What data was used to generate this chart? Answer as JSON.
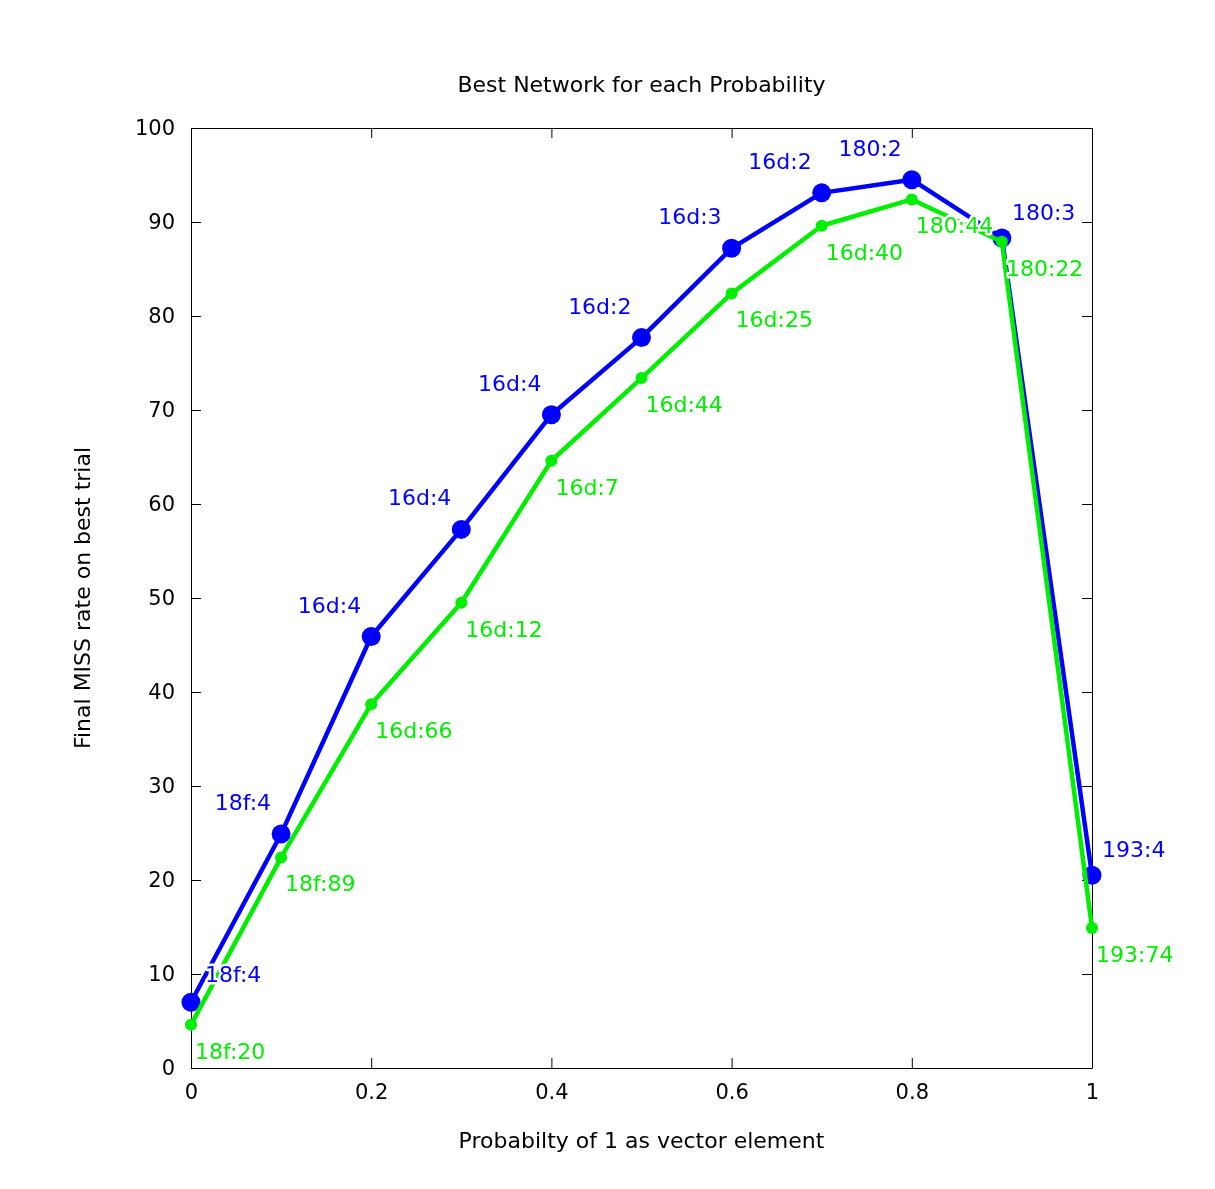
{
  "chart_data": {
    "type": "line",
    "title": "Best Network for each Probability",
    "xlabel": "Probabilty of 1 as  vector element",
    "ylabel": "Final MISS rate on best trial",
    "x": [
      0,
      0.1,
      0.2,
      0.3,
      0.4,
      0.5,
      0.6,
      0.7,
      0.8,
      0.9,
      1
    ],
    "series": [
      {
        "color": "#0000ff",
        "values": [
          7,
          24.9,
          45.9,
          57.3,
          69.5,
          77.7,
          87.2,
          93.1,
          94.5,
          88.3,
          20.5
        ]
      },
      {
        "color": "#00ee00",
        "values": [
          4.6,
          22.4,
          38.7,
          49.5,
          64.6,
          73.4,
          82.4,
          89.6,
          92.4,
          87.9,
          14.9
        ]
      }
    ],
    "xlim": [
      0,
      1
    ],
    "xticks": [
      0,
      0.2,
      0.4,
      0.6,
      0.8,
      1
    ],
    "ylim": [
      0,
      100
    ],
    "yticks": [
      0,
      10,
      20,
      30,
      40,
      50,
      60,
      70,
      80,
      90,
      100
    ],
    "marker": "circle",
    "line_style": "solid",
    "grid": false,
    "annotations": [
      {
        "text": "18f:4",
        "x": 0,
        "y": 7
      },
      {
        "text": "18f:4",
        "x": 0.1,
        "y": 24.9
      },
      {
        "text": "16d:4",
        "x": 0.2,
        "y": 45.9
      },
      {
        "text": "16d:4",
        "x": 0.3,
        "y": 57.3
      },
      {
        "text": "16d:4",
        "x": 0.4,
        "y": 69.5
      },
      {
        "text": "16d:2",
        "x": 0.5,
        "y": 77.7
      },
      {
        "text": "16d:3",
        "x": 0.6,
        "y": 87.2
      },
      {
        "text": "16d:2",
        "x": 0.7,
        "y": 93.1
      },
      {
        "text": "180:2",
        "x": 0.8,
        "y": 94.5
      },
      {
        "text": "180:3",
        "x": 0.9,
        "y": 88.3
      },
      {
        "text": "193:4",
        "x": 1,
        "y": 20.5
      },
      {
        "text": "18f:20",
        "x": 0,
        "y": 4.6
      },
      {
        "text": "18f:89",
        "x": 0.1,
        "y": 22.4
      },
      {
        "text": "16d:66",
        "x": 0.2,
        "y": 38.7
      },
      {
        "text": "16d:12",
        "x": 0.3,
        "y": 49.5
      },
      {
        "text": "16d:7",
        "x": 0.4,
        "y": 64.6
      },
      {
        "text": "16d:44",
        "x": 0.5,
        "y": 73.4
      },
      {
        "text": "16d:25",
        "x": 0.6,
        "y": 82.4
      },
      {
        "text": "16d:40",
        "x": 0.7,
        "y": 89.6
      },
      {
        "text": "180:44",
        "x": 0.8,
        "y": 92.4
      },
      {
        "text": "180:22",
        "x": 0.9,
        "y": 87.9
      },
      {
        "text": "193:74",
        "x": 1,
        "y": 14.9
      }
    ]
  }
}
